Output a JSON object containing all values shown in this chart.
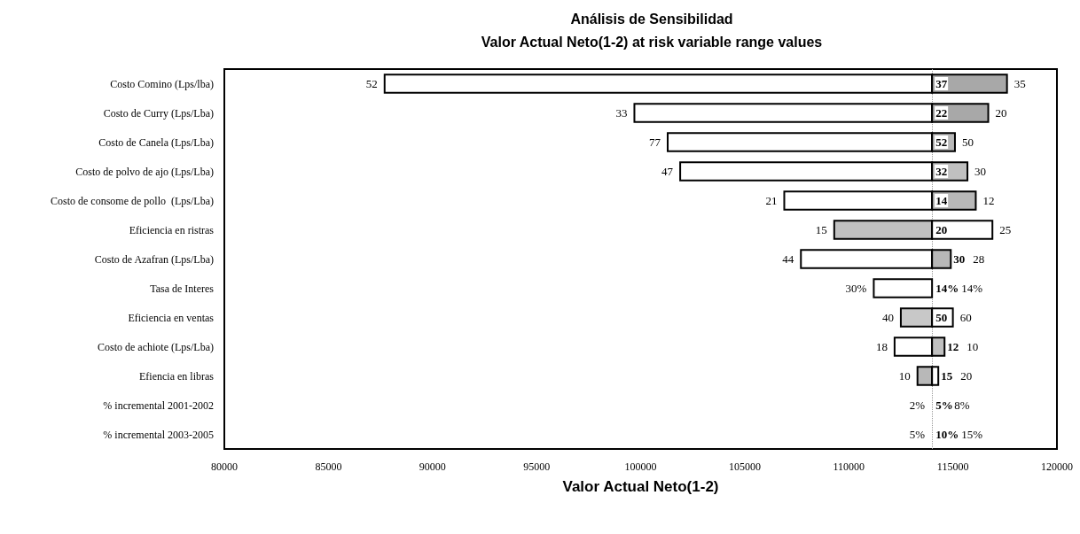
{
  "chart_data": {
    "type": "bar",
    "orientation": "horizontal",
    "title": "Análisis de Sensibilidad",
    "subtitle": "Valor Actual Neto(1-2) at risk variable range values",
    "xlabel": "Valor Actual Neto(1-2)",
    "categories": [
      "Costo Comino (Lps/lba)",
      "Costo de Curry (Lps/Lba)",
      "Costo de Canela (Lps/Lba)",
      "Costo de polvo de ajo (Lps/Lba)",
      "Costo de consome de pollo  (Lps/Lba)",
      "Eficiencia en ristras",
      "Costo de Azafran (Lps/Lba)",
      "Tasa de Interes",
      "Eficiencia en ventas",
      "Costo de achiote (Lps/Lba)",
      "Efiencia en libras",
      "% incremental 2001-2002",
      "% incremental 2003-2005"
    ],
    "series": [
      {
        "base": [
          87700,
          99700,
          101300,
          101900,
          106900,
          109300,
          107700,
          111200,
          112500,
          112200,
          113300,
          null,
          null
        ],
        "values": [
          26300,
          14300,
          12700,
          12100,
          7100,
          4700,
          6300,
          2800,
          1500,
          1800,
          700,
          null,
          null
        ],
        "colors": [
          "#ffffff",
          "#ffffff",
          "#ffffff",
          "#ffffff",
          "#ffffff",
          "#c0c0c0",
          "#ffffff",
          "#ffffff",
          "#c8c8c8",
          "#ffffff",
          "#b8b8b8",
          null,
          null
        ]
      },
      {
        "base": [
          114000,
          114000,
          114000,
          114000,
          114000,
          114000,
          114000,
          null,
          114000,
          114000,
          114000,
          null,
          null
        ],
        "values": [
          3600,
          2700,
          1100,
          1700,
          2100,
          2900,
          900,
          null,
          1000,
          600,
          300,
          null,
          null
        ],
        "colors": [
          "#a8a8a8",
          "#a8a8a8",
          "#b8b8b8",
          "#c0c0c0",
          "#b8b8b8",
          "#ffffff",
          "#b8b8b8",
          null,
          "#ffffff",
          "#c0c0c0",
          "#ffffff",
          null,
          null
        ]
      }
    ],
    "xlim": [
      80000,
      120000
    ],
    "xticks": [
      80000,
      85000,
      90000,
      95000,
      100000,
      105000,
      110000,
      115000,
      120000
    ],
    "grid": false,
    "ref_lines": [
      {
        "axis": "x",
        "value": 114000,
        "line_style": "dotted",
        "color": "#999999"
      }
    ],
    "annotations": [
      {
        "text": "52",
        "x": 87700,
        "y": "Costo Comino (Lps/lba)"
      },
      {
        "text": "37",
        "x": 114000,
        "y": "Costo Comino (Lps/lba)"
      },
      {
        "text": "35",
        "x": 117600,
        "y": "Costo Comino (Lps/lba)"
      },
      {
        "text": "33",
        "x": 99700,
        "y": "Costo de Curry (Lps/Lba)"
      },
      {
        "text": "22",
        "x": 114000,
        "y": "Costo de Curry (Lps/Lba)"
      },
      {
        "text": "20",
        "x": 116700,
        "y": "Costo de Curry (Lps/Lba)"
      },
      {
        "text": "77",
        "x": 101300,
        "y": "Costo de Canela (Lps/Lba)"
      },
      {
        "text": "52",
        "x": 114000,
        "y": "Costo de Canela (Lps/Lba)"
      },
      {
        "text": "50",
        "x": 115100,
        "y": "Costo de Canela (Lps/Lba)"
      },
      {
        "text": "47",
        "x": 101900,
        "y": "Costo de polvo de ajo (Lps/Lba)"
      },
      {
        "text": "32",
        "x": 114000,
        "y": "Costo de polvo de ajo (Lps/Lba)"
      },
      {
        "text": "30",
        "x": 115700,
        "y": "Costo de polvo de ajo (Lps/Lba)"
      },
      {
        "text": "21",
        "x": 106900,
        "y": "Costo de consome de pollo  (Lps/Lba)"
      },
      {
        "text": "14",
        "x": 114000,
        "y": "Costo de consome de pollo  (Lps/Lba)"
      },
      {
        "text": "12",
        "x": 116100,
        "y": "Costo de consome de pollo  (Lps/Lba)"
      },
      {
        "text": "15",
        "x": 109300,
        "y": "Eficiencia en ristras"
      },
      {
        "text": "20",
        "x": 114000,
        "y": "Eficiencia en ristras"
      },
      {
        "text": "25",
        "x": 116900,
        "y": "Eficiencia en ristras"
      },
      {
        "text": "44",
        "x": 107700,
        "y": "Costo de Azafran (Lps/Lba)"
      },
      {
        "text": "30",
        "x": 114000,
        "y": "Costo de Azafran (Lps/Lba)"
      },
      {
        "text": "28",
        "x": 114900,
        "y": "Costo de Azafran (Lps/Lba)"
      },
      {
        "text": "30%",
        "x": 111200,
        "y": "Tasa de Interes"
      },
      {
        "text": "14%",
        "x": 114000,
        "y": "Tasa de Interes"
      },
      {
        "text": "14%",
        "x": 114000,
        "y": "Tasa de Interes"
      },
      {
        "text": "40",
        "x": 112500,
        "y": "Eficiencia en ventas"
      },
      {
        "text": "50",
        "x": 114000,
        "y": "Eficiencia en ventas"
      },
      {
        "text": "60",
        "x": 115000,
        "y": "Eficiencia en ventas"
      },
      {
        "text": "18",
        "x": 112200,
        "y": "Costo de achiote (Lps/Lba)"
      },
      {
        "text": "12",
        "x": 114000,
        "y": "Costo de achiote (Lps/Lba)"
      },
      {
        "text": "10",
        "x": 114600,
        "y": "Costo de achiote (Lps/Lba)"
      },
      {
        "text": "10",
        "x": 113300,
        "y": "Efiencia en libras"
      },
      {
        "text": "15",
        "x": 114000,
        "y": "Efiencia en libras"
      },
      {
        "text": "20",
        "x": 114300,
        "y": "Efiencia en libras"
      },
      {
        "text": "2%",
        "x": 114000,
        "y": "% incremental 2001-2002"
      },
      {
        "text": "5%",
        "x": 114000,
        "y": "% incremental 2001-2002"
      },
      {
        "text": "8%",
        "x": 114000,
        "y": "% incremental 2001-2002"
      },
      {
        "text": "5%",
        "x": 114000,
        "y": "% incremental 2003-2005"
      },
      {
        "text": "10%",
        "x": 114000,
        "y": "% incremental 2003-2005"
      },
      {
        "text": "15%",
        "x": 114000,
        "y": "% incremental 2003-2005"
      }
    ]
  }
}
